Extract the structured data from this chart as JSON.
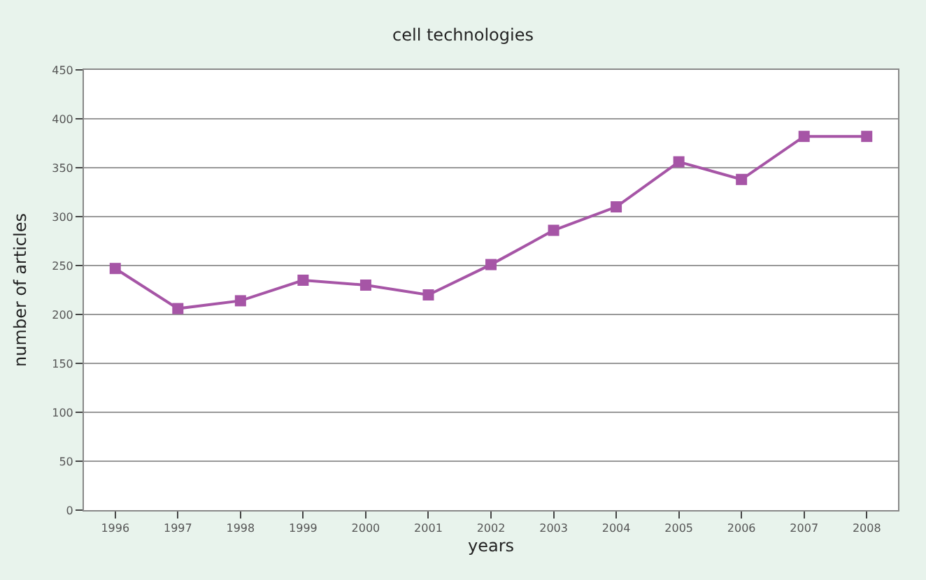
{
  "chart_data": {
    "type": "line",
    "title": "cell technologies",
    "xlabel": "years",
    "ylabel": "number of articles",
    "categories": [
      "1996",
      "1997",
      "1998",
      "1999",
      "2000",
      "2001",
      "2002",
      "2003",
      "2004",
      "2005",
      "2006",
      "2007",
      "2008"
    ],
    "series": [
      {
        "color": "#a655a6",
        "values": [
          247,
          206,
          214,
          235,
          230,
          220,
          251,
          286,
          310,
          356,
          338,
          382,
          382
        ]
      }
    ],
    "ylim": [
      0,
      450
    ],
    "yticks": [
      0,
      50,
      100,
      150,
      200,
      250,
      300,
      350,
      400,
      450
    ],
    "grid": "y",
    "marker": "square",
    "line_style": "solid"
  }
}
